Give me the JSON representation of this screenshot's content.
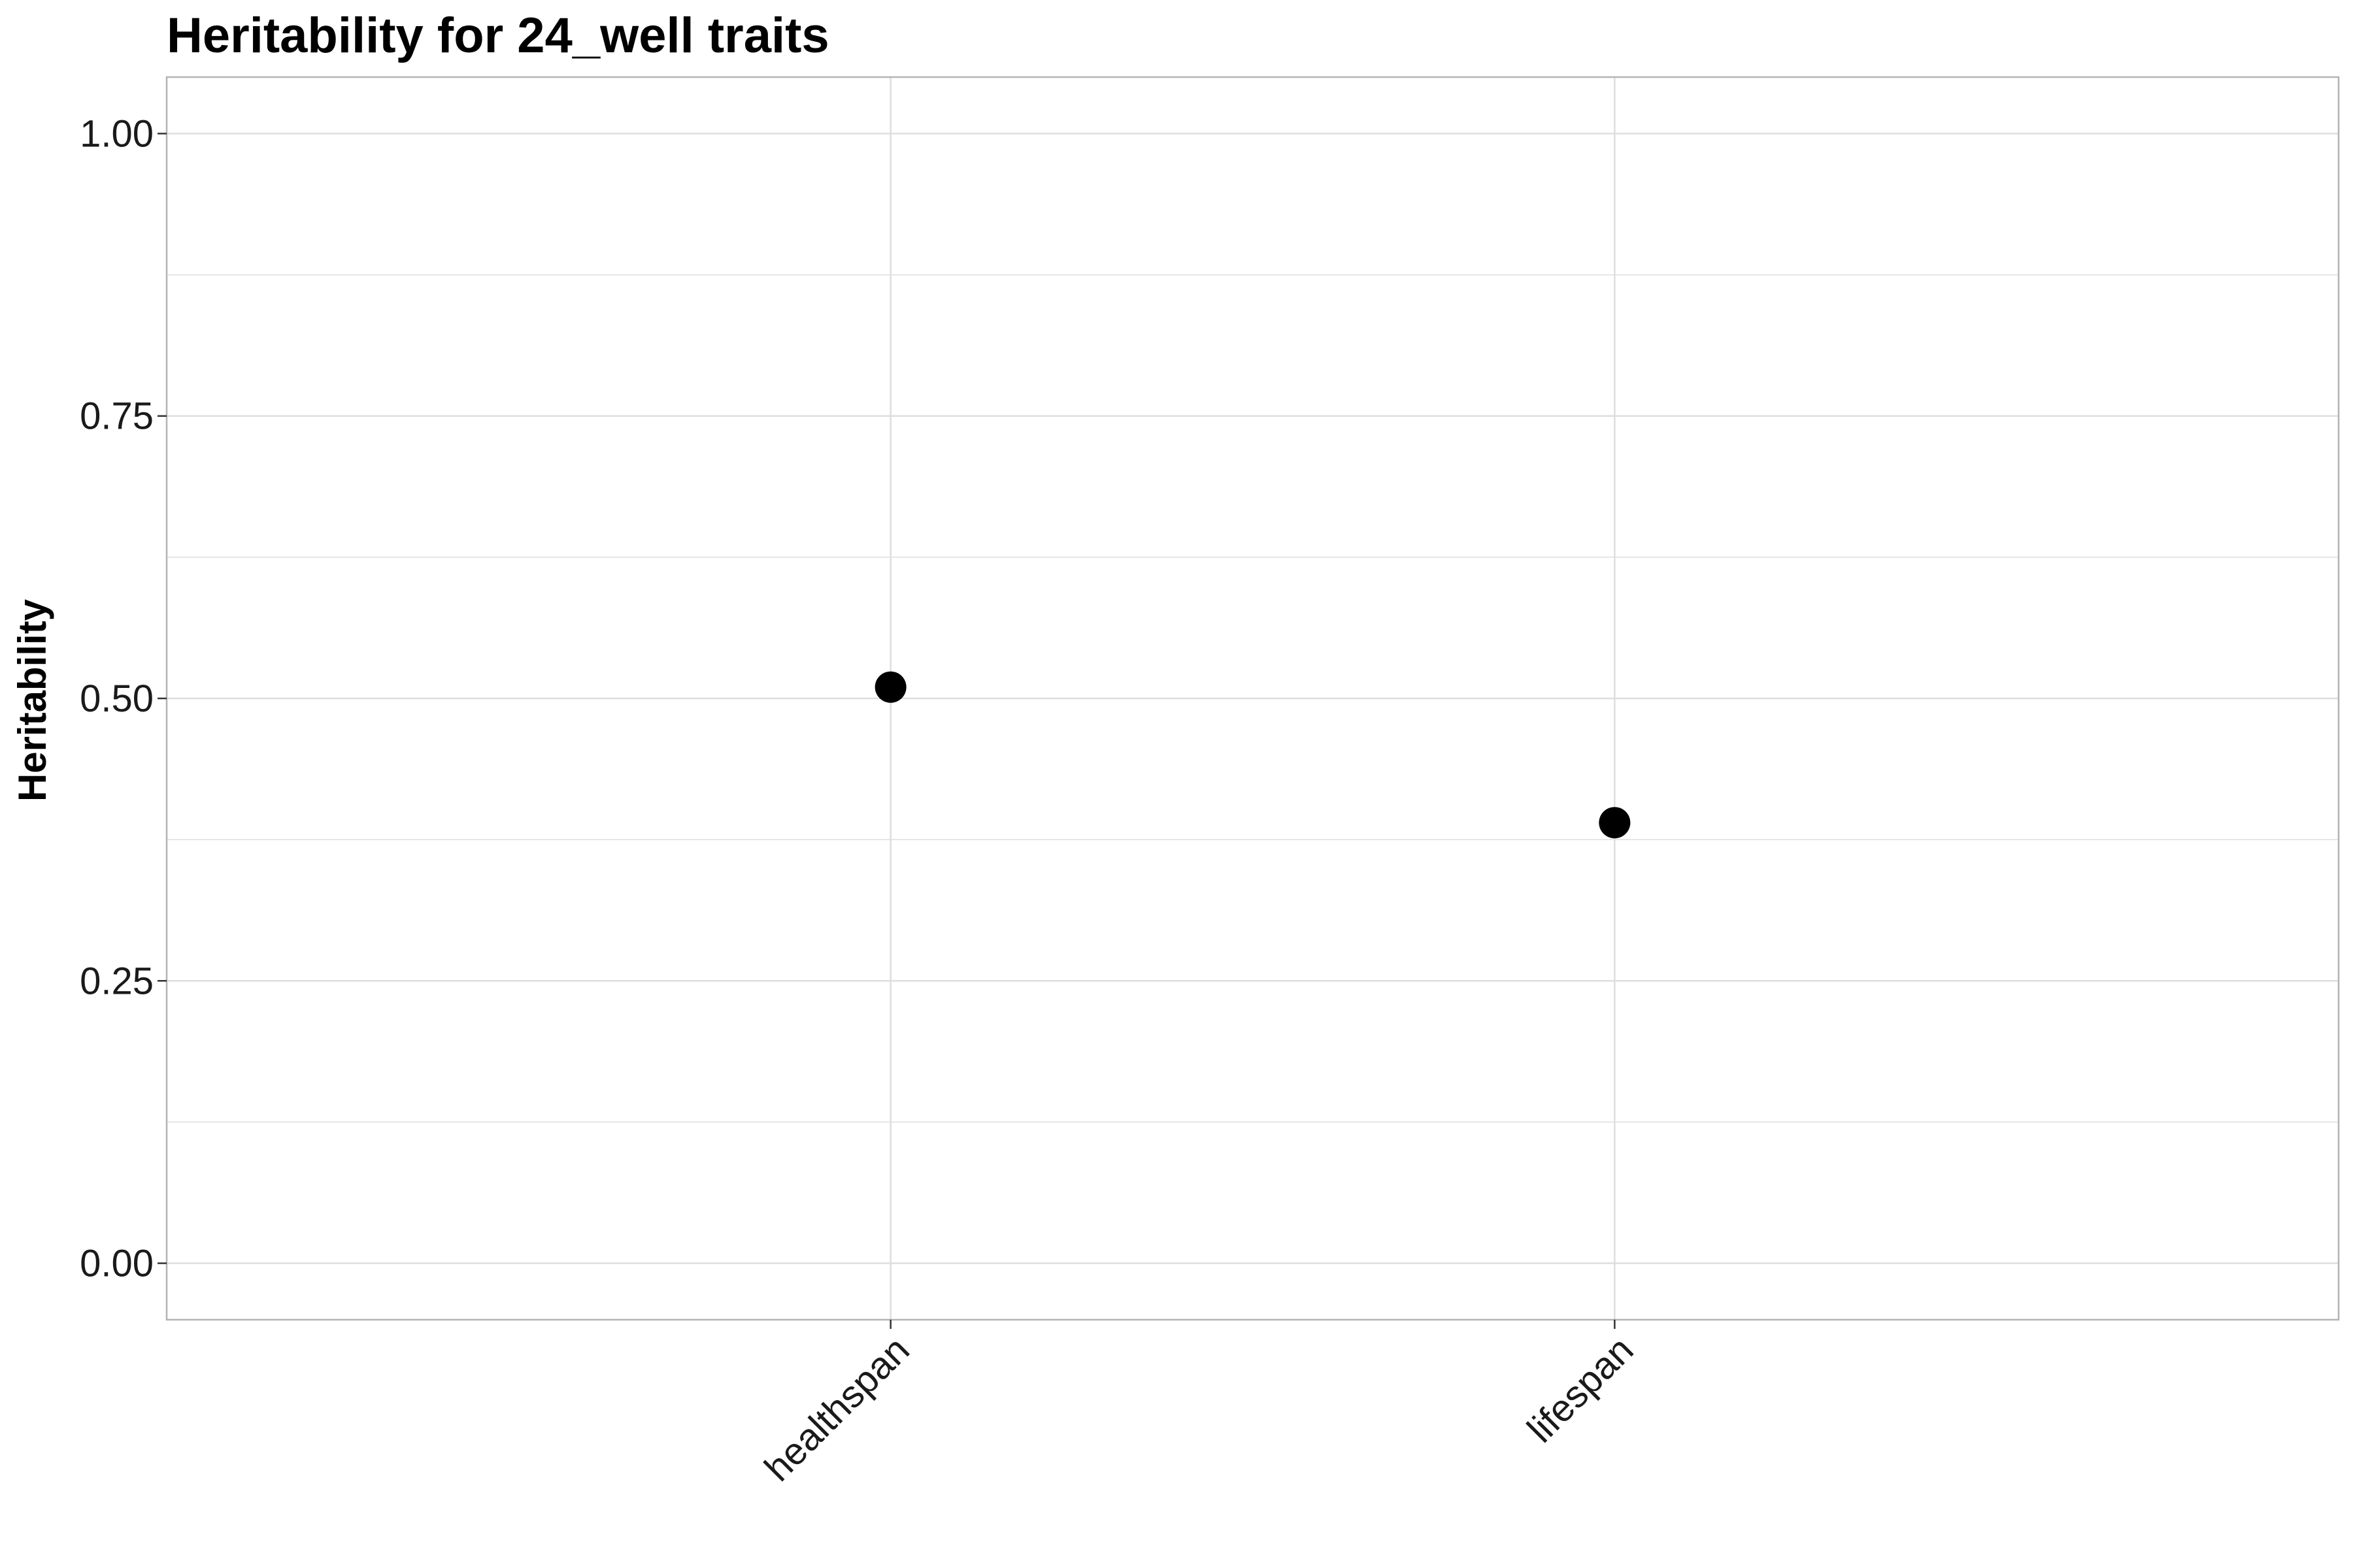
{
  "chart_data": {
    "type": "scatter",
    "title": "Heritability for 24_well traits",
    "xlabel": "",
    "ylabel": "Heritability",
    "categories": [
      "healthspan",
      "lifespan"
    ],
    "values": [
      0.51,
      0.39
    ],
    "ylim": [
      -0.05,
      1.05
    ],
    "yticks": [
      {
        "value": 0.0,
        "label": "0.00"
      },
      {
        "value": 0.25,
        "label": "0.25"
      },
      {
        "value": 0.5,
        "label": "0.50"
      },
      {
        "value": 0.75,
        "label": "0.75"
      },
      {
        "value": 1.0,
        "label": "1.00"
      }
    ],
    "yminor": [
      0.125,
      0.375,
      0.625,
      0.875
    ],
    "grid": true,
    "point_color": "#000000",
    "grid_color": "#dedede",
    "panel_border_color": "#b3b3b3"
  }
}
